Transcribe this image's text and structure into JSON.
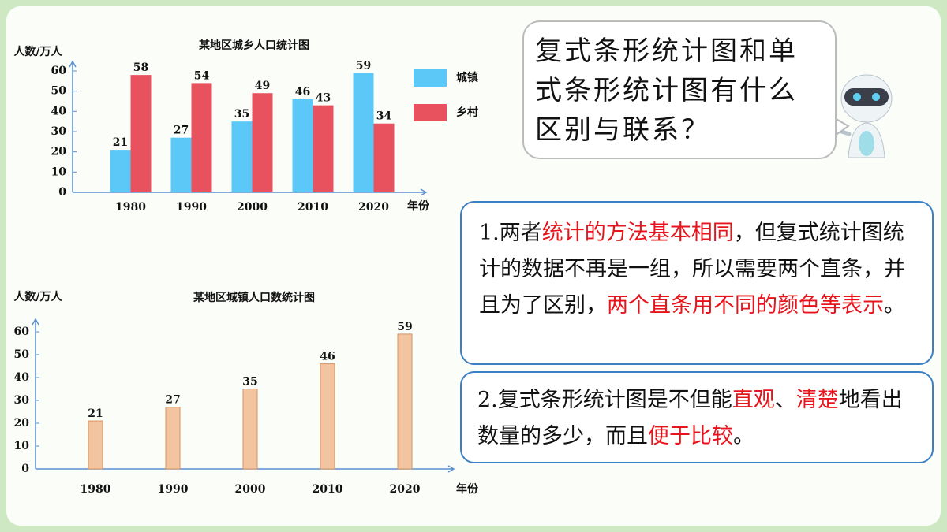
{
  "chart_data": [
    {
      "type": "bar",
      "title": "某地区城乡人口统计图",
      "y_label": "人数/万人",
      "x_label": "年份",
      "categories": [
        "1980",
        "1990",
        "2000",
        "2010",
        "2020"
      ],
      "series": [
        {
          "name": "城镇",
          "color": "#5bc8f7",
          "values": [
            21,
            27,
            35,
            46,
            59
          ]
        },
        {
          "name": "乡村",
          "color": "#e8525f",
          "values": [
            58,
            54,
            49,
            43,
            34
          ]
        }
      ],
      "ylim": [
        0,
        60
      ],
      "yticks": [
        0,
        10,
        20,
        30,
        40,
        50,
        60
      ],
      "legend": "right"
    },
    {
      "type": "bar",
      "title": "某地区城镇人口数统计图",
      "y_label": "人数/万人",
      "x_label": "年份",
      "categories": [
        "1980",
        "1990",
        "2000",
        "2010",
        "2020"
      ],
      "values": [
        21,
        27,
        35,
        46,
        59
      ],
      "color": "#f2c4a0",
      "ylim": [
        0,
        60
      ],
      "yticks": [
        0,
        10,
        20,
        30,
        40,
        50,
        60
      ]
    }
  ],
  "question": "复式条形统计图和单式条形统计图有什么区别与联系？",
  "points": [
    {
      "segments": [
        {
          "text": "1.两者",
          "color": "#111111"
        },
        {
          "text": "统计的方法基本相同",
          "color": "#e8141c"
        },
        {
          "text": "，但复式统计图统计的数据不再是一组，所以需要两个直条，并且为了区别，",
          "color": "#111111"
        },
        {
          "text": "两个直条用不同的颜色等表示",
          "color": "#e8141c"
        },
        {
          "text": "。",
          "color": "#111111"
        }
      ]
    },
    {
      "segments": [
        {
          "text": "2.复式条形统计图是不但能",
          "color": "#111111"
        },
        {
          "text": "直观",
          "color": "#e8141c"
        },
        {
          "text": "、",
          "color": "#111111"
        },
        {
          "text": "清楚",
          "color": "#e8141c"
        },
        {
          "text": "地看出数量的多少，而且",
          "color": "#111111"
        },
        {
          "text": "便于比较",
          "color": "#e8141c"
        },
        {
          "text": "。",
          "color": "#111111"
        }
      ]
    }
  ]
}
